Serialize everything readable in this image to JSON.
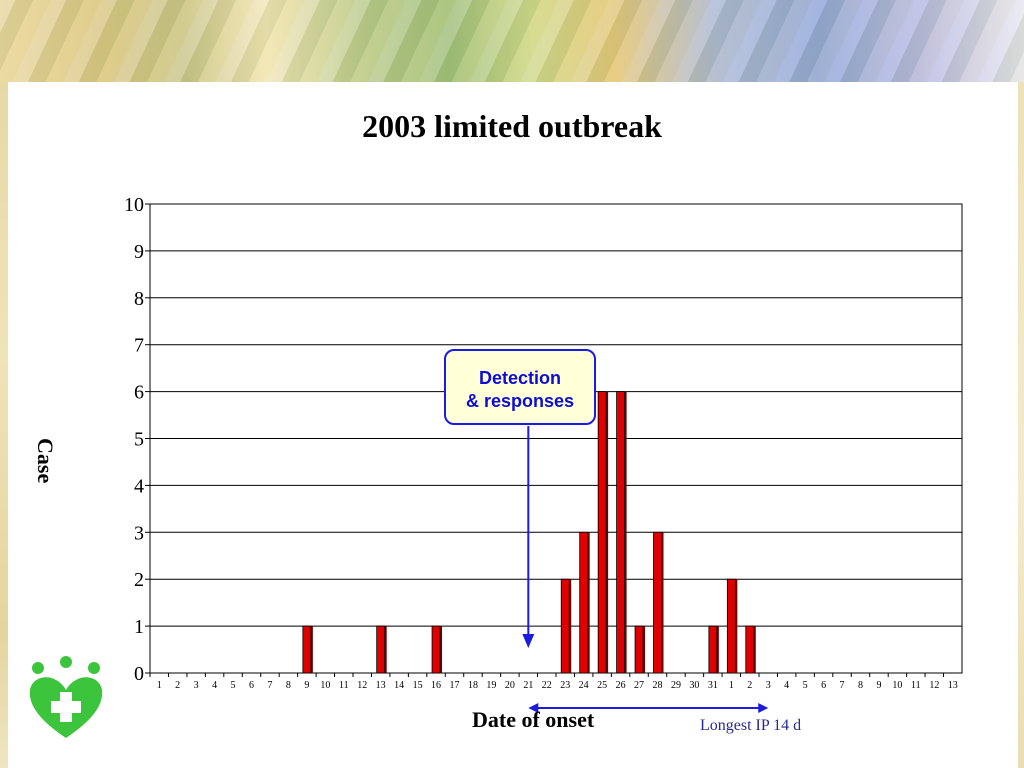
{
  "slide": {
    "title": "2003 limited outbreak",
    "ylabel": "Case",
    "xlabel": "Date of onset",
    "annotation_ip": "Longest IP 14 d",
    "callout_line1": "Detection",
    "callout_line2": "& responses"
  },
  "colors": {
    "bar": "#e00000",
    "bar_shadow": "#6b0000",
    "callout_border": "#1c1ce0",
    "callout_text": "#0d0dd6",
    "arrow": "#1c1ce0",
    "logo": "#3cc43c"
  },
  "chart_data": {
    "type": "bar",
    "title": "2003 limited outbreak",
    "xlabel": "Date of onset",
    "ylabel": "Case",
    "ylim": [
      0,
      10
    ],
    "yticks": [
      0,
      1,
      2,
      3,
      4,
      5,
      6,
      7,
      8,
      9,
      10
    ],
    "grid": true,
    "categories": [
      "1",
      "2",
      "3",
      "4",
      "5",
      "6",
      "7",
      "8",
      "9",
      "10",
      "11",
      "12",
      "13",
      "14",
      "15",
      "16",
      "17",
      "18",
      "19",
      "20",
      "21",
      "22",
      "23",
      "24",
      "25",
      "26",
      "27",
      "28",
      "29",
      "30",
      "31",
      "1",
      "2",
      "3",
      "4",
      "5",
      "6",
      "7",
      "8",
      "9",
      "10",
      "11",
      "12",
      "13"
    ],
    "values": [
      0,
      0,
      0,
      0,
      0,
      0,
      0,
      0,
      1,
      0,
      0,
      0,
      1,
      0,
      0,
      1,
      0,
      0,
      0,
      0,
      0,
      0,
      2,
      3,
      6,
      6,
      1,
      3,
      0,
      0,
      1,
      2,
      1,
      0,
      0,
      0,
      0,
      0,
      0,
      0,
      0,
      0,
      0,
      0
    ],
    "annotations": [
      {
        "text": "Detection & responses",
        "x_category_index": 20
      },
      {
        "text": "Longest IP 14 d",
        "from_category_index": 20,
        "to_category_index": 33
      }
    ]
  }
}
